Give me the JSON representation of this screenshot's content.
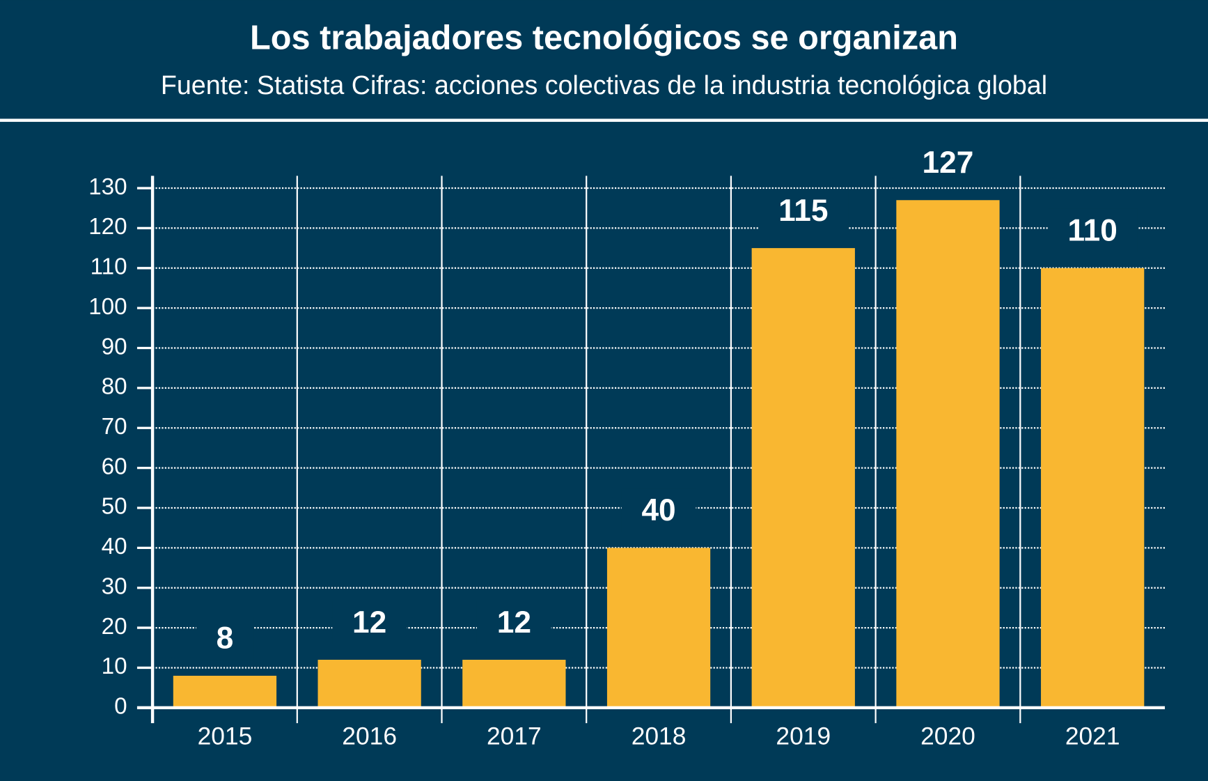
{
  "chart_data": {
    "type": "bar",
    "title": "Los trabajadores tecnológicos se organizan",
    "subtitle": "Fuente: Statista Cifras: acciones colectivas de la industria tecnológica global",
    "categories": [
      "2015",
      "2016",
      "2017",
      "2018",
      "2019",
      "2020",
      "2021"
    ],
    "values": [
      8,
      12,
      12,
      40,
      115,
      127,
      110
    ],
    "color": "#f9b731",
    "ylim": [
      0,
      130
    ],
    "yticks": [
      0,
      10,
      20,
      30,
      40,
      50,
      60,
      70,
      80,
      90,
      100,
      110,
      120,
      130
    ],
    "grid": true
  }
}
